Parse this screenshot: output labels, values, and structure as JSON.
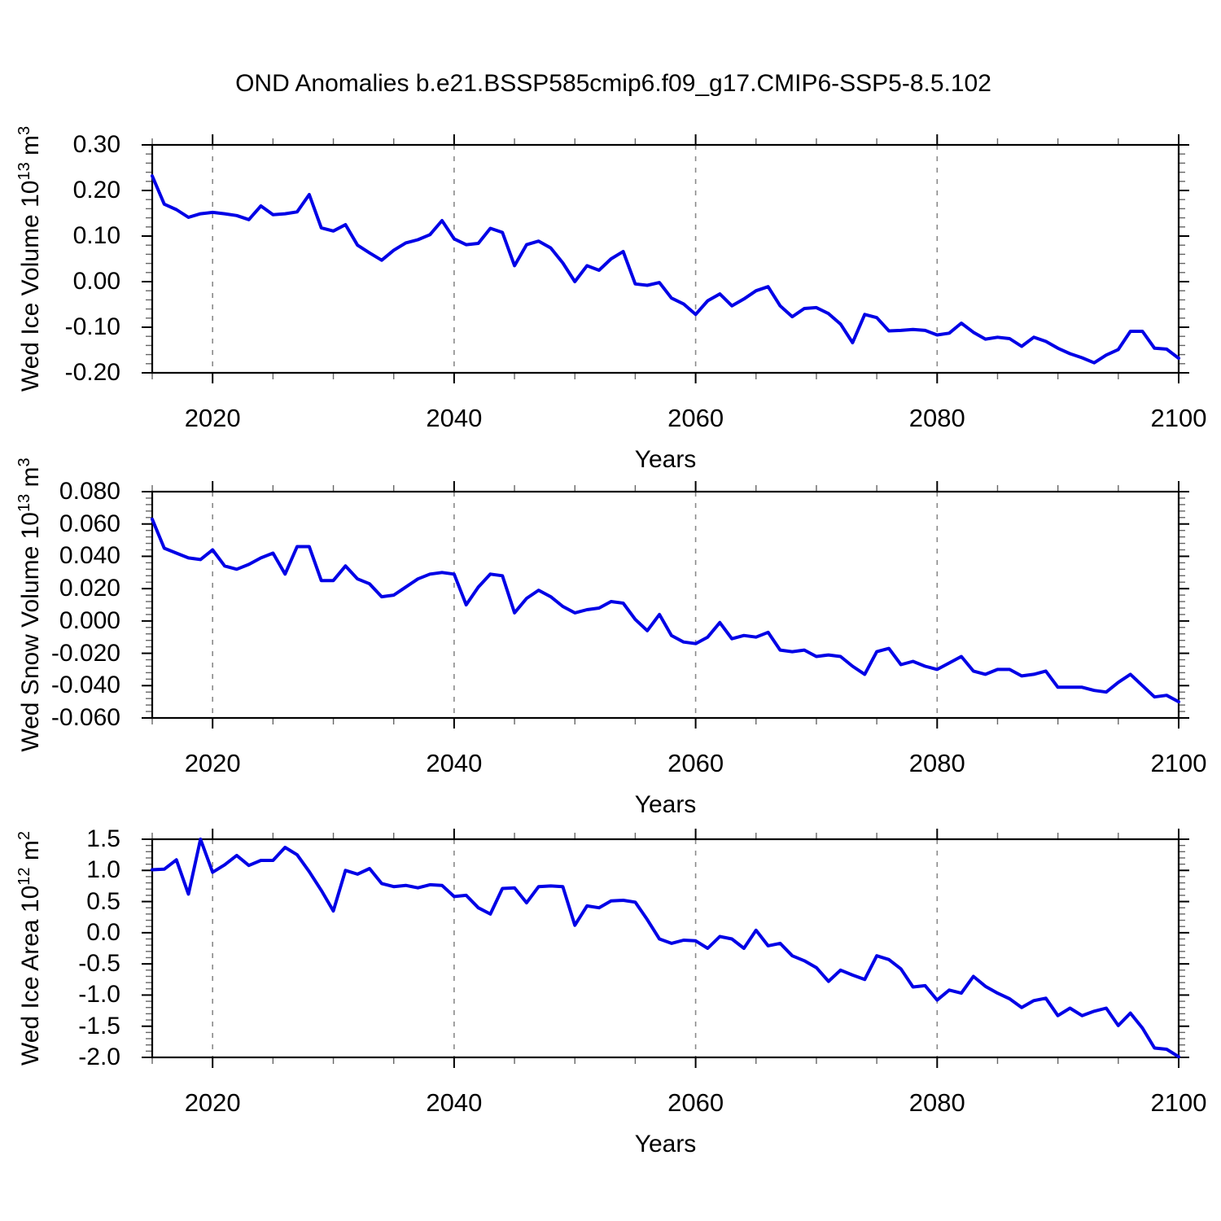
{
  "title": "OND Anomalies b.e21.BSSP585cmip6.f09_g17.CMIP6-SSP5-8.5.102",
  "colors": {
    "line": "#0000e6",
    "axis": "#000000",
    "grid": "#8a8a8a",
    "minor_tick": "#666666",
    "background": "#ffffff"
  },
  "chart_data": [
    {
      "id": "ice-volume",
      "type": "line",
      "ylabel": {
        "prefix": "Wed Ice Volume 10",
        "sup1": "13",
        "mid": " m",
        "sup2": "3"
      },
      "xlabel": "Years",
      "ylim": [
        -0.2,
        0.3
      ],
      "ytick_values": [
        0.3,
        0.2,
        0.1,
        0.0,
        -0.1,
        -0.2
      ],
      "ytick_labels": [
        "0.30",
        "0.20",
        "0.10",
        "0.00",
        "-0.10",
        "-0.20"
      ],
      "y_minor_step": 0.02,
      "xlim": [
        2015,
        2100
      ],
      "xtick_values": [
        2020,
        2040,
        2060,
        2080,
        2100
      ],
      "xtick_labels": [
        "2020",
        "2040",
        "2060",
        "2080",
        "2100"
      ],
      "x_minor_step": 5,
      "grid_x": [
        2020,
        2040,
        2060,
        2080
      ],
      "grid_on": "vertical-dashed-only",
      "legend": "none",
      "x_start": 2015,
      "x_step": 1,
      "values": [
        0.232,
        0.17,
        0.158,
        0.141,
        0.149,
        0.152,
        0.149,
        0.145,
        0.136,
        0.166,
        0.147,
        0.149,
        0.153,
        0.191,
        0.118,
        0.111,
        0.125,
        0.08,
        0.063,
        0.047,
        0.069,
        0.085,
        0.092,
        0.103,
        0.134,
        0.094,
        0.081,
        0.084,
        0.117,
        0.108,
        0.035,
        0.081,
        0.089,
        0.074,
        0.041,
        0.0,
        0.035,
        0.025,
        0.05,
        0.066,
        -0.005,
        -0.008,
        -0.002,
        -0.036,
        -0.049,
        -0.072,
        -0.042,
        -0.027,
        -0.053,
        -0.038,
        -0.02,
        -0.011,
        -0.053,
        -0.077,
        -0.059,
        -0.057,
        -0.07,
        -0.093,
        -0.134,
        -0.072,
        -0.079,
        -0.108,
        -0.107,
        -0.105,
        -0.107,
        -0.117,
        -0.113,
        -0.091,
        -0.111,
        -0.126,
        -0.122,
        -0.125,
        -0.142,
        -0.122,
        -0.131,
        -0.146,
        -0.158,
        -0.167,
        -0.178,
        -0.161,
        -0.149,
        -0.109,
        -0.109,
        -0.146,
        -0.148,
        -0.168
      ]
    },
    {
      "id": "snow-volume",
      "type": "line",
      "ylabel": {
        "prefix": "Wed Snow Volume 10",
        "sup1": "13",
        "mid": " m",
        "sup2": "3"
      },
      "xlabel": "Years",
      "ylim": [
        -0.06,
        0.08
      ],
      "ytick_values": [
        0.08,
        0.06,
        0.04,
        0.02,
        0.0,
        -0.02,
        -0.04,
        -0.06
      ],
      "ytick_labels": [
        "0.080",
        "0.060",
        "0.040",
        "0.020",
        "0.000",
        "-0.020",
        "-0.040",
        "-0.060"
      ],
      "y_minor_step": 0.004,
      "xlim": [
        2015,
        2100
      ],
      "xtick_values": [
        2020,
        2040,
        2060,
        2080,
        2100
      ],
      "xtick_labels": [
        "2020",
        "2040",
        "2060",
        "2080",
        "2100"
      ],
      "x_minor_step": 5,
      "grid_x": [
        2020,
        2040,
        2060,
        2080
      ],
      "grid_on": "vertical-dashed-only",
      "legend": "none",
      "x_start": 2015,
      "x_step": 1,
      "values": [
        0.063,
        0.045,
        0.042,
        0.039,
        0.038,
        0.044,
        0.034,
        0.032,
        0.035,
        0.039,
        0.042,
        0.029,
        0.046,
        0.046,
        0.025,
        0.025,
        0.034,
        0.026,
        0.023,
        0.015,
        0.016,
        0.021,
        0.026,
        0.029,
        0.03,
        0.029,
        0.01,
        0.021,
        0.029,
        0.028,
        0.005,
        0.014,
        0.019,
        0.015,
        0.009,
        0.005,
        0.007,
        0.008,
        0.012,
        0.011,
        0.001,
        -0.006,
        0.004,
        -0.009,
        -0.013,
        -0.014,
        -0.01,
        -0.001,
        -0.011,
        -0.009,
        -0.01,
        -0.007,
        -0.018,
        -0.019,
        -0.018,
        -0.022,
        -0.021,
        -0.022,
        -0.028,
        -0.033,
        -0.019,
        -0.017,
        -0.027,
        -0.025,
        -0.028,
        -0.03,
        -0.026,
        -0.022,
        -0.031,
        -0.033,
        -0.03,
        -0.03,
        -0.034,
        -0.033,
        -0.031,
        -0.041,
        -0.041,
        -0.041,
        -0.043,
        -0.044,
        -0.038,
        -0.033,
        -0.04,
        -0.047,
        -0.046,
        -0.05
      ]
    },
    {
      "id": "ice-area",
      "type": "line",
      "ylabel": {
        "prefix": "Wed Ice Area 10",
        "sup1": "12",
        "mid": " m",
        "sup2": "2"
      },
      "xlabel": "Years",
      "ylim": [
        -2.0,
        1.5
      ],
      "ytick_values": [
        1.5,
        1.0,
        0.5,
        0.0,
        -0.5,
        -1.0,
        -1.5,
        -2.0
      ],
      "ytick_labels": [
        "1.5",
        "1.0",
        "0.5",
        "0.0",
        "-0.5",
        "-1.0",
        "-1.5",
        "-2.0"
      ],
      "y_minor_step": 0.1,
      "xlim": [
        2015,
        2100
      ],
      "xtick_values": [
        2020,
        2040,
        2060,
        2080,
        2100
      ],
      "xtick_labels": [
        "2020",
        "2040",
        "2060",
        "2080",
        "2100"
      ],
      "x_minor_step": 5,
      "grid_x": [
        2020,
        2040,
        2060,
        2080
      ],
      "grid_on": "vertical-dashed-only",
      "legend": "none",
      "x_start": 2015,
      "x_step": 1,
      "values": [
        1.01,
        1.02,
        1.17,
        0.62,
        1.5,
        0.97,
        1.09,
        1.24,
        1.08,
        1.16,
        1.16,
        1.37,
        1.25,
        0.98,
        0.68,
        0.35,
        1.0,
        0.94,
        1.03,
        0.79,
        0.74,
        0.76,
        0.72,
        0.77,
        0.76,
        0.58,
        0.6,
        0.4,
        0.3,
        0.71,
        0.72,
        0.48,
        0.74,
        0.75,
        0.74,
        0.12,
        0.43,
        0.4,
        0.51,
        0.52,
        0.49,
        0.21,
        -0.1,
        -0.17,
        -0.12,
        -0.13,
        -0.25,
        -0.06,
        -0.1,
        -0.25,
        0.04,
        -0.21,
        -0.17,
        -0.37,
        -0.45,
        -0.56,
        -0.78,
        -0.6,
        -0.68,
        -0.75,
        -0.37,
        -0.43,
        -0.58,
        -0.87,
        -0.85,
        -1.08,
        -0.92,
        -0.97,
        -0.7,
        -0.86,
        -0.97,
        -1.06,
        -1.2,
        -1.09,
        -1.05,
        -1.33,
        -1.21,
        -1.33,
        -1.26,
        -1.21,
        -1.49,
        -1.29,
        -1.53,
        -1.85,
        -1.87,
        -1.99
      ]
    }
  ]
}
